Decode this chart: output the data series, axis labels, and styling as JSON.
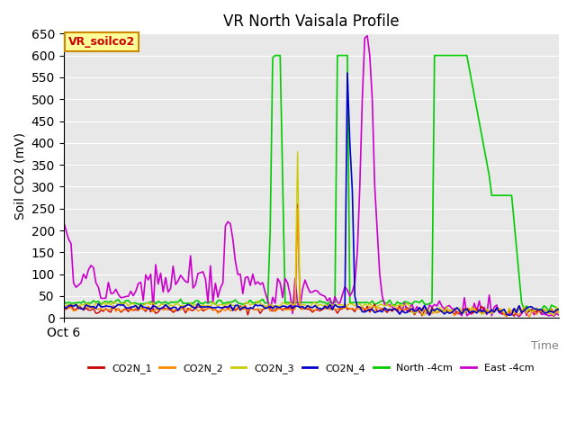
{
  "title": "VR North Vaisala Profile",
  "ylabel": "Soil CO2 (mV)",
  "xlabel": "Time",
  "xlabel_bottom_right": true,
  "x_tick_label": "Oct 6",
  "ylim": [
    0,
    650
  ],
  "yticks": [
    0,
    50,
    100,
    150,
    200,
    250,
    300,
    350,
    400,
    450,
    500,
    550,
    600,
    650
  ],
  "legend_label": "VR_soilco2",
  "legend_entries": [
    "CO2N_1",
    "CO2N_2",
    "CO2N_3",
    "CO2N_4",
    "North -4cm",
    "East -4cm"
  ],
  "line_colors": {
    "CO2N_1": "#cc0000",
    "CO2N_2": "#ff8800",
    "CO2N_3": "#cccc00",
    "CO2N_4": "#0000cc",
    "North -4cm": "#00cc00",
    "East -4cm": "#cc00cc"
  },
  "background_color": "#e8e8e8",
  "plot_bg_color": "#e8e8e8",
  "annotation_box_color": "#ffff99",
  "annotation_text_color": "#cc0000",
  "n_points": 200
}
